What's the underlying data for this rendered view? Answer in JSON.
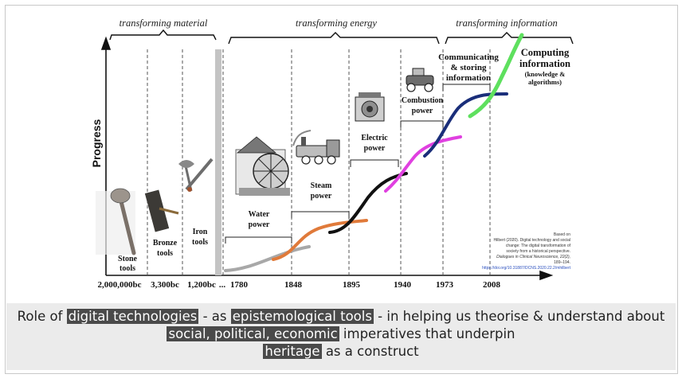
{
  "eras": {
    "material": "transforming material",
    "energy": "transforming energy",
    "information": "transforming information"
  },
  "axis": {
    "ylabel": "Progress",
    "ticks": [
      "2,000,000bc",
      "3,300bc",
      "1,200bc",
      "...",
      "1780",
      "1848",
      "1895",
      "1940",
      "1973",
      "2008"
    ]
  },
  "stages": {
    "stone": [
      "Stone",
      "tools"
    ],
    "bronze": [
      "Bronze",
      "tools"
    ],
    "iron": [
      "Iron",
      "tools"
    ],
    "water": [
      "Water",
      "power"
    ],
    "steam": [
      "Steam",
      "power"
    ],
    "electric": [
      "Electric",
      "power"
    ],
    "combustion": [
      "Combustion",
      "power"
    ],
    "communicating": [
      "Communicating",
      "& storing",
      "information"
    ],
    "computing": [
      "Computing",
      "information",
      "(knowledge &",
      "algorithms)"
    ]
  },
  "citation": {
    "line1": "Based on",
    "line2": "Hilbert (2020). Digital technology and social",
    "line3": "change: The digital transformation of",
    "line4": "society from a historical perspective.",
    "line5": "Dialogues in Clinical Neuroscience, 22(2),",
    "line6": "189–194.",
    "line7": "https://doi.org/10.31887/DCNS.2020.22.2/mhilbert"
  },
  "colors": {
    "grey_curve": "#a8a8a8",
    "orange_curve": "#e07a3a",
    "black_curve": "#111111",
    "magenta_curve": "#e040e0",
    "navy_curve": "#1a2e7a",
    "green_curve": "#5ee05e",
    "highlight": "#4a4a4a",
    "caption_bg": "#ebebeb"
  },
  "caption": {
    "part1": "Role of ",
    "hl1": "digital technologies",
    "part2": " - as ",
    "hl2": "epistemological tools",
    "part3": " -  in helping us theorise & understand about ",
    "hl3": "social, political, economic",
    "part4": " imperatives that underpin ",
    "hl4": "heritage",
    "part5": " as a construct"
  },
  "icons": [
    "stone-axe-icon",
    "bronze-axe-icon",
    "iron-weapons-icon",
    "water-wheel-icon",
    "steam-locomotive-icon",
    "electric-engine-icon",
    "vintage-car-icon"
  ]
}
